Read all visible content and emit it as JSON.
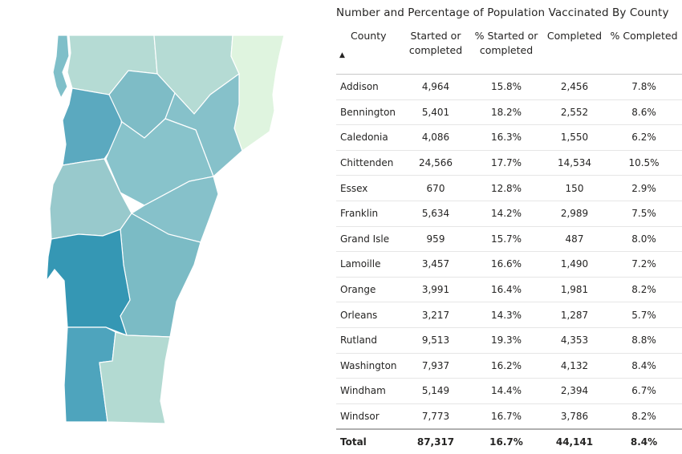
{
  "title": "Number and Percentage of Population Vaccinated By County",
  "columns": {
    "county": "County",
    "started": "Started or completed",
    "pct_started": "% Started or completed",
    "completed": "Completed",
    "pct_completed": "% Completed"
  },
  "sort_indicator": "▲",
  "rows": [
    {
      "county": "Addison",
      "started": "4,964",
      "pct_started": "15.8%",
      "completed": "2,456",
      "pct_completed": "7.8%"
    },
    {
      "county": "Bennington",
      "started": "5,401",
      "pct_started": "18.2%",
      "completed": "2,552",
      "pct_completed": "8.6%"
    },
    {
      "county": "Caledonia",
      "started": "4,086",
      "pct_started": "16.3%",
      "completed": "1,550",
      "pct_completed": "6.2%"
    },
    {
      "county": "Chittenden",
      "started": "24,566",
      "pct_started": "17.7%",
      "completed": "14,534",
      "pct_completed": "10.5%"
    },
    {
      "county": "Essex",
      "started": "670",
      "pct_started": "12.8%",
      "completed": "150",
      "pct_completed": "2.9%"
    },
    {
      "county": "Franklin",
      "started": "5,634",
      "pct_started": "14.2%",
      "completed": "2,989",
      "pct_completed": "7.5%"
    },
    {
      "county": "Grand Isle",
      "started": "959",
      "pct_started": "15.7%",
      "completed": "487",
      "pct_completed": "8.0%"
    },
    {
      "county": "Lamoille",
      "started": "3,457",
      "pct_started": "16.6%",
      "completed": "1,490",
      "pct_completed": "7.2%"
    },
    {
      "county": "Orange",
      "started": "3,991",
      "pct_started": "16.4%",
      "completed": "1,981",
      "pct_completed": "8.2%"
    },
    {
      "county": "Orleans",
      "started": "3,217",
      "pct_started": "14.3%",
      "completed": "1,287",
      "pct_completed": "5.7%"
    },
    {
      "county": "Rutland",
      "started": "9,513",
      "pct_started": "19.3%",
      "completed": "4,353",
      "pct_completed": "8.8%"
    },
    {
      "county": "Washington",
      "started": "7,937",
      "pct_started": "16.2%",
      "completed": "4,132",
      "pct_completed": "8.4%"
    },
    {
      "county": "Windham",
      "started": "5,149",
      "pct_started": "14.4%",
      "completed": "2,394",
      "pct_completed": "6.7%"
    },
    {
      "county": "Windsor",
      "started": "7,773",
      "pct_started": "16.7%",
      "completed": "3,786",
      "pct_completed": "8.2%"
    }
  ],
  "total": {
    "county": "Total",
    "started": "87,317",
    "pct_started": "16.7%",
    "completed": "44,141",
    "pct_completed": "8.4%"
  },
  "map": {
    "counties": [
      {
        "name": "Grand Isle",
        "color": "#7fbfc9"
      },
      {
        "name": "Franklin",
        "color": "#b5dbd4"
      },
      {
        "name": "Orleans",
        "color": "#b5dbd4"
      },
      {
        "name": "Essex",
        "color": "#dff4df"
      },
      {
        "name": "Chittenden",
        "color": "#5ba9bf"
      },
      {
        "name": "Lamoille",
        "color": "#7ebcc6"
      },
      {
        "name": "Caledonia",
        "color": "#86c1ca"
      },
      {
        "name": "Washington",
        "color": "#88c3cb"
      },
      {
        "name": "Addison",
        "color": "#98c9cc"
      },
      {
        "name": "Orange",
        "color": "#86c1ca"
      },
      {
        "name": "Windsor",
        "color": "#7bbbc5"
      },
      {
        "name": "Rutland",
        "color": "#3597b4"
      },
      {
        "name": "Bennington",
        "color": "#4ea4bd"
      },
      {
        "name": "Windham",
        "color": "#b3dad2"
      }
    ]
  },
  "chart_data": {
    "type": "table",
    "title": "Number and Percentage of Population Vaccinated By County",
    "columns": [
      "County",
      "Started or completed",
      "% Started or completed",
      "Completed",
      "% Completed"
    ],
    "categories": [
      "Addison",
      "Bennington",
      "Caledonia",
      "Chittenden",
      "Essex",
      "Franklin",
      "Grand Isle",
      "Lamoille",
      "Orange",
      "Orleans",
      "Rutland",
      "Washington",
      "Windham",
      "Windsor"
    ],
    "series": [
      {
        "name": "Started or completed",
        "values": [
          4964,
          5401,
          4086,
          24566,
          670,
          5634,
          959,
          3457,
          3991,
          3217,
          9513,
          7937,
          5149,
          7773
        ]
      },
      {
        "name": "% Started or completed",
        "values": [
          15.8,
          18.2,
          16.3,
          17.7,
          12.8,
          14.2,
          15.7,
          16.6,
          16.4,
          14.3,
          19.3,
          16.2,
          14.4,
          16.7
        ]
      },
      {
        "name": "Completed",
        "values": [
          2456,
          2552,
          1550,
          14534,
          150,
          2989,
          487,
          1490,
          1981,
          1287,
          4353,
          4132,
          2394,
          3786
        ]
      },
      {
        "name": "% Completed",
        "values": [
          7.8,
          8.6,
          6.2,
          10.5,
          2.9,
          7.5,
          8.0,
          7.2,
          8.2,
          5.7,
          8.8,
          8.4,
          6.7,
          8.2
        ]
      }
    ],
    "total": {
      "Started or completed": 87317,
      "% Started or completed": 16.7,
      "Completed": 44141,
      "% Completed": 8.4
    }
  }
}
